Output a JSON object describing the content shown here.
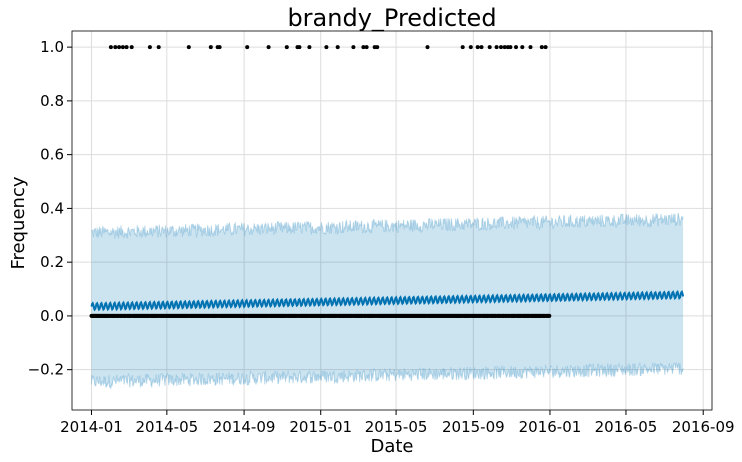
{
  "chart_data": {
    "type": "line",
    "title": "brandy_Predicted",
    "xlabel": "Date",
    "ylabel": "Frequency",
    "xlim": [
      "2013-12-01",
      "2016-09-15"
    ],
    "ylim": [
      -0.35,
      1.06
    ],
    "x_ticks": [
      "2014-01",
      "2014-05",
      "2014-09",
      "2015-01",
      "2015-05",
      "2015-09",
      "2016-01",
      "2016-05",
      "2016-09"
    ],
    "y_ticks": [
      -0.2,
      0.0,
      0.2,
      0.4,
      0.6,
      0.8,
      1.0
    ],
    "y_tick_labels": [
      "−0.2",
      "0.0",
      "0.2",
      "0.4",
      "0.6",
      "0.8",
      "1.0"
    ],
    "grid": true,
    "colors": {
      "forecast_line": "#0072B2",
      "uncertainty_band": "#0072B2",
      "observed_points": "#000000",
      "grid": "#dddddd"
    },
    "forecast": {
      "start": "2014-01-01",
      "end": "2016-07-31",
      "yhat_start": 0.035,
      "yhat_end": 0.078,
      "weekly_amplitude": 0.012,
      "upper_start": 0.31,
      "upper_end": 0.36,
      "lower_start": -0.245,
      "lower_end": -0.195
    },
    "observed": {
      "start": "2014-01-01",
      "end": "2015-12-31",
      "baseline_value": 0.0,
      "spike_value": 1.0,
      "spike_dates": [
        "2014-02-01",
        "2014-02-08",
        "2014-02-14",
        "2014-02-20",
        "2014-02-26",
        "2014-03-06",
        "2014-04-04",
        "2014-04-18",
        "2014-06-05",
        "2014-07-10",
        "2014-07-21",
        "2014-07-24",
        "2014-09-06",
        "2014-10-10",
        "2014-11-08",
        "2014-11-25",
        "2014-11-28",
        "2014-12-14",
        "2015-01-10",
        "2015-01-28",
        "2015-02-22",
        "2015-03-10",
        "2015-03-15",
        "2015-03-28",
        "2015-04-01",
        "2015-06-20",
        "2015-08-15",
        "2015-08-28",
        "2015-09-08",
        "2015-09-14",
        "2015-09-27",
        "2015-10-08",
        "2015-10-15",
        "2015-10-21",
        "2015-10-26",
        "2015-10-30",
        "2015-11-08",
        "2015-11-18",
        "2015-12-01",
        "2015-12-19",
        "2015-12-25"
      ]
    }
  }
}
